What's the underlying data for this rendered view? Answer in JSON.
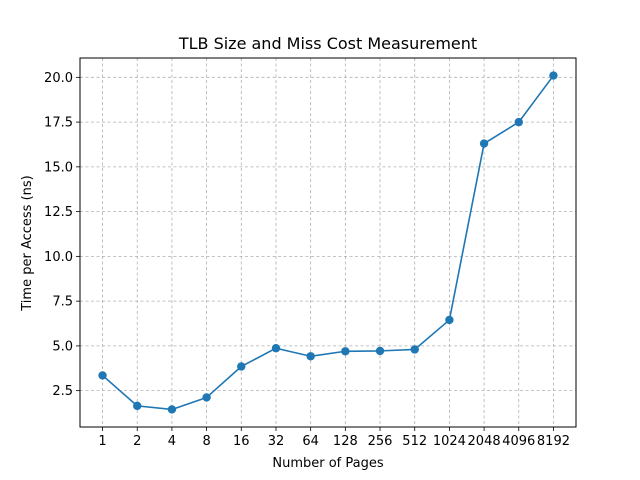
{
  "chart_data": {
    "type": "line",
    "title": "TLB Size and Miss Cost Measurement",
    "xlabel": "Number of Pages",
    "ylabel": "Time per Access (ns)",
    "categories": [
      "1",
      "2",
      "4",
      "8",
      "16",
      "32",
      "64",
      "128",
      "256",
      "512",
      "1024",
      "2048",
      "4096",
      "8192"
    ],
    "series": [
      {
        "values": [
          3.35,
          1.65,
          1.45,
          2.12,
          3.85,
          4.87,
          4.42,
          4.7,
          4.72,
          4.8,
          6.45,
          16.3,
          17.5,
          20.1
        ],
        "color": "#1f77b4",
        "marker": "circle"
      }
    ],
    "ylim": [
      0.47,
      21.08
    ],
    "yticks": [
      2.5,
      5.0,
      7.5,
      10.0,
      12.5,
      15.0,
      17.5,
      20.0
    ],
    "ytick_labels": [
      "2.5",
      "5.0",
      "7.5",
      "10.0",
      "12.5",
      "15.0",
      "17.5",
      "20.0"
    ],
    "grid": true,
    "grid_style": "dashed",
    "grid_color": "#b0b0b0"
  }
}
